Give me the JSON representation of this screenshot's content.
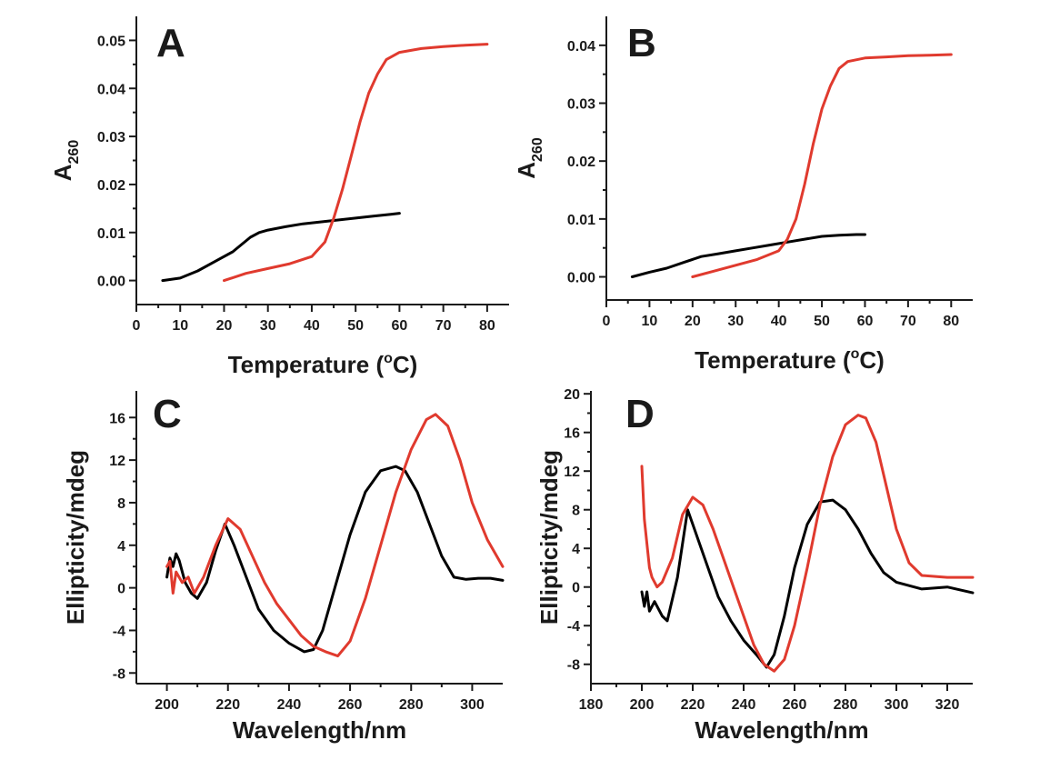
{
  "chart_data": [
    {
      "type": "line",
      "panel": "A",
      "xlabel": "Temperature (°C)",
      "ylabel": "A260",
      "xlim": [
        0,
        85
      ],
      "ylim": [
        -0.005,
        0.055
      ],
      "xticks": [
        0,
        10,
        20,
        30,
        40,
        50,
        60,
        70,
        80
      ],
      "yticks": [
        0.0,
        0.01,
        0.02,
        0.03,
        0.04,
        0.05
      ],
      "ytick_labels": [
        "0.00",
        "0.01",
        "0.02",
        "0.03",
        "0.04",
        "0.05"
      ],
      "series": [
        {
          "color": "#000000",
          "x": [
            6,
            10,
            14,
            18,
            22,
            26,
            28,
            30,
            34,
            38,
            42,
            46,
            50,
            54,
            58,
            60
          ],
          "y": [
            0.0,
            0.0005,
            0.002,
            0.004,
            0.006,
            0.009,
            0.01,
            0.0105,
            0.0112,
            0.0118,
            0.0122,
            0.0126,
            0.013,
            0.0134,
            0.0138,
            0.014
          ]
        },
        {
          "color": "#e03a2e",
          "x": [
            20,
            25,
            30,
            35,
            40,
            43,
            45,
            47,
            49,
            51,
            53,
            55,
            57,
            60,
            65,
            70,
            75,
            80
          ],
          "y": [
            0.0,
            0.0015,
            0.0025,
            0.0035,
            0.005,
            0.008,
            0.013,
            0.019,
            0.026,
            0.033,
            0.039,
            0.043,
            0.046,
            0.0475,
            0.0483,
            0.0487,
            0.049,
            0.0492
          ]
        }
      ]
    },
    {
      "type": "line",
      "panel": "B",
      "xlabel": "Temperature (°C)",
      "ylabel": "A260",
      "xlim": [
        0,
        85
      ],
      "ylim": [
        -0.004,
        0.045
      ],
      "xticks": [
        0,
        10,
        20,
        30,
        40,
        50,
        60,
        70,
        80
      ],
      "yticks": [
        0.0,
        0.01,
        0.02,
        0.03,
        0.04
      ],
      "ytick_labels": [
        "0.00",
        "0.01",
        "0.02",
        "0.03",
        "0.04"
      ],
      "series": [
        {
          "color": "#000000",
          "x": [
            6,
            10,
            14,
            18,
            22,
            26,
            30,
            34,
            38,
            42,
            46,
            50,
            54,
            58,
            60
          ],
          "y": [
            0.0,
            0.0008,
            0.0015,
            0.0025,
            0.0035,
            0.004,
            0.0045,
            0.005,
            0.0055,
            0.006,
            0.0065,
            0.007,
            0.0072,
            0.0073,
            0.0073
          ]
        },
        {
          "color": "#e03a2e",
          "x": [
            20,
            25,
            30,
            35,
            40,
            42,
            44,
            46,
            48,
            50,
            52,
            54,
            56,
            60,
            65,
            70,
            75,
            80
          ],
          "y": [
            0.0,
            0.001,
            0.002,
            0.003,
            0.0045,
            0.0065,
            0.01,
            0.016,
            0.023,
            0.029,
            0.033,
            0.036,
            0.0372,
            0.0378,
            0.038,
            0.0382,
            0.0383,
            0.0384
          ]
        }
      ]
    },
    {
      "type": "line",
      "panel": "C",
      "xlabel": "Wavelength/nm",
      "ylabel": "Ellipticity/mdeg",
      "xlim": [
        190,
        310
      ],
      "ylim": [
        -9,
        18.5
      ],
      "xticks": [
        200,
        220,
        240,
        260,
        280,
        300
      ],
      "yticks": [
        -8,
        -4,
        0,
        4,
        8,
        12,
        16
      ],
      "ytick_labels": [
        "-8",
        "-4",
        "0",
        "4",
        "8",
        "12",
        "16"
      ],
      "series": [
        {
          "color": "#000000",
          "x": [
            200,
            201,
            202,
            203,
            204,
            206,
            208,
            210,
            213,
            216,
            219,
            222,
            226,
            230,
            235,
            240,
            245,
            248,
            251,
            255,
            260,
            265,
            270,
            275,
            278,
            282,
            286,
            290,
            294,
            298,
            302,
            306,
            310
          ],
          "y": [
            1.0,
            2.8,
            2.0,
            3.2,
            2.6,
            0.5,
            -0.5,
            -1.0,
            0.5,
            3.5,
            6.0,
            4.0,
            1.0,
            -2.0,
            -4.0,
            -5.2,
            -6.0,
            -5.8,
            -4.0,
            0.0,
            5.0,
            9.0,
            11.0,
            11.4,
            11.0,
            9.0,
            6.0,
            3.0,
            1.0,
            0.8,
            0.9,
            0.9,
            0.7
          ]
        },
        {
          "color": "#e03a2e",
          "x": [
            200,
            201,
            202,
            203,
            205,
            207,
            209,
            212,
            216,
            220,
            224,
            228,
            232,
            236,
            240,
            244,
            248,
            252,
            256,
            260,
            265,
            270,
            275,
            280,
            285,
            288,
            292,
            296,
            300,
            305,
            310
          ],
          "y": [
            2.0,
            2.5,
            -0.5,
            1.5,
            0.5,
            1.0,
            -0.5,
            1.0,
            4.0,
            6.5,
            5.5,
            3.0,
            0.5,
            -1.5,
            -3.0,
            -4.5,
            -5.5,
            -6.0,
            -6.4,
            -5.0,
            -1.0,
            4.0,
            9.0,
            13.0,
            15.8,
            16.3,
            15.2,
            12.0,
            8.0,
            4.5,
            2.0
          ]
        }
      ]
    },
    {
      "type": "line",
      "panel": "D",
      "xlabel": "Wavelength/nm",
      "ylabel": "Ellipticity/mdeg",
      "xlim": [
        180,
        330
      ],
      "ylim": [
        -10,
        20.3
      ],
      "xticks": [
        180,
        200,
        220,
        240,
        260,
        280,
        300,
        320
      ],
      "yticks": [
        -8,
        -4,
        0,
        4,
        8,
        12,
        16,
        20
      ],
      "ytick_labels": [
        "-8",
        "-4",
        "0",
        "4",
        "8",
        "12",
        "16",
        "20"
      ],
      "series": [
        {
          "color": "#000000",
          "x": [
            200,
            201,
            202,
            203,
            205,
            208,
            210,
            214,
            218,
            222,
            226,
            230,
            235,
            240,
            245,
            249,
            252,
            256,
            260,
            265,
            270,
            275,
            280,
            285,
            290,
            295,
            300,
            310,
            320,
            330
          ],
          "y": [
            -0.5,
            -2.0,
            -0.5,
            -2.5,
            -1.5,
            -3.0,
            -3.5,
            1.0,
            8.0,
            5.0,
            2.0,
            -1.0,
            -3.5,
            -5.5,
            -7.0,
            -8.3,
            -7.0,
            -3.0,
            2.0,
            6.5,
            8.8,
            9.0,
            8.0,
            6.0,
            3.5,
            1.5,
            0.5,
            -0.2,
            0.0,
            -0.6
          ]
        },
        {
          "color": "#e03a2e",
          "x": [
            200,
            201,
            202,
            203,
            204,
            206,
            208,
            212,
            216,
            220,
            224,
            228,
            232,
            236,
            240,
            244,
            248,
            252,
            256,
            260,
            265,
            270,
            275,
            280,
            285,
            288,
            292,
            296,
            300,
            305,
            310,
            320,
            330
          ],
          "y": [
            12.5,
            7.0,
            4.5,
            2.0,
            1.0,
            0.0,
            0.5,
            3.0,
            7.5,
            9.3,
            8.5,
            6.0,
            3.0,
            0.0,
            -3.0,
            -6.0,
            -8.0,
            -8.7,
            -7.5,
            -4.0,
            2.0,
            8.5,
            13.5,
            16.8,
            17.8,
            17.5,
            15.0,
            10.5,
            6.0,
            2.5,
            1.2,
            1.0,
            1.0
          ]
        }
      ]
    }
  ]
}
